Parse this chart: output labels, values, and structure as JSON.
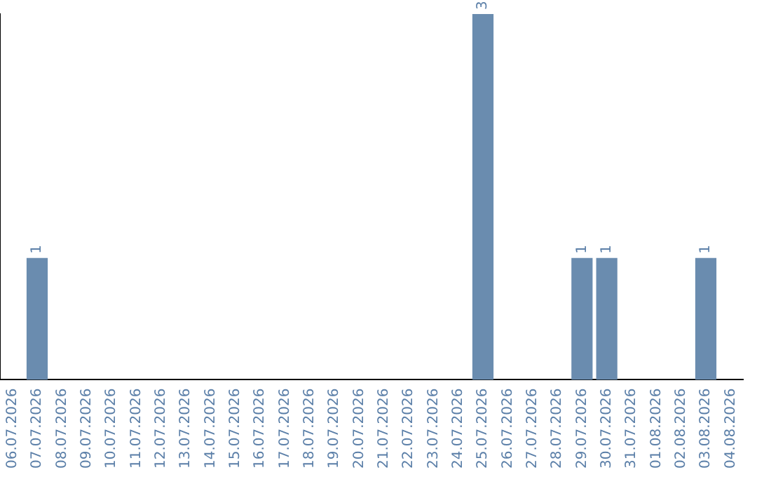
{
  "chart_data": {
    "type": "bar",
    "categories": [
      "06.07.2026",
      "07.07.2026",
      "08.07.2026",
      "09.07.2026",
      "10.07.2026",
      "11.07.2026",
      "12.07.2026",
      "13.07.2026",
      "14.07.2026",
      "15.07.2026",
      "16.07.2026",
      "17.07.2026",
      "18.07.2026",
      "19.07.2026",
      "20.07.2026",
      "21.07.2026",
      "22.07.2026",
      "23.07.2026",
      "24.07.2026",
      "25.07.2026",
      "26.07.2026",
      "27.07.2026",
      "28.07.2026",
      "29.07.2026",
      "30.07.2026",
      "31.07.2026",
      "01.08.2026",
      "02.08.2026",
      "03.08.2026",
      "04.08.2026"
    ],
    "values": [
      0,
      1,
      0,
      0,
      0,
      0,
      0,
      0,
      0,
      0,
      0,
      0,
      0,
      0,
      0,
      0,
      0,
      0,
      0,
      3,
      0,
      0,
      0,
      1,
      1,
      0,
      0,
      0,
      1,
      0
    ],
    "value_labels": [
      null,
      "1",
      null,
      null,
      null,
      null,
      null,
      null,
      null,
      null,
      null,
      null,
      null,
      null,
      null,
      null,
      null,
      null,
      null,
      "3",
      null,
      null,
      null,
      "1",
      "1",
      null,
      null,
      null,
      "1",
      null
    ],
    "color": "#6a8caf",
    "grid": false,
    "legend": false
  }
}
